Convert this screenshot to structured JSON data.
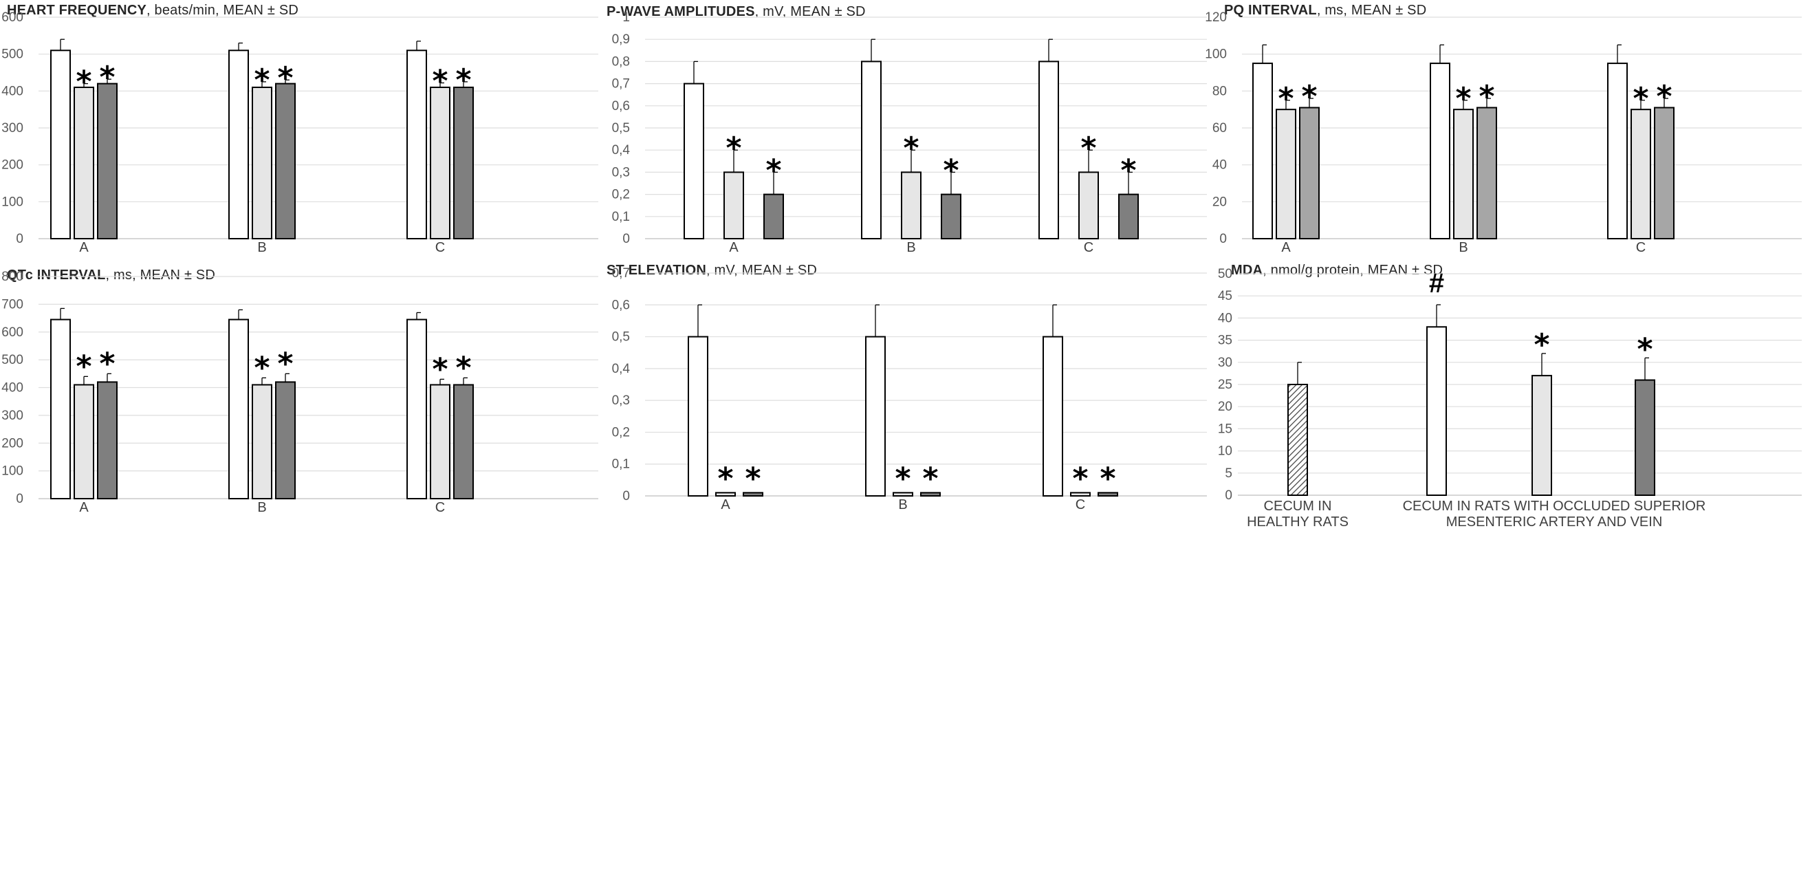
{
  "chart_data": [
    {
      "id": "hf",
      "type": "bar",
      "title_bold": "HEART FREQUENCY",
      "title_rest": ", beats/min, MEAN ± SD",
      "categories": [
        "A",
        "B",
        "C"
      ],
      "ylim": [
        0,
        600
      ],
      "yticks": [
        0,
        100,
        200,
        300,
        400,
        500,
        600
      ],
      "ytick_labels": [
        "0",
        "100",
        "200",
        "300",
        "400",
        "500",
        "600"
      ],
      "series_colors": [
        "#ffffff",
        "#e6e6e6",
        "#7f7f7f"
      ],
      "values": [
        [
          510,
          410,
          420
        ],
        [
          510,
          410,
          420
        ],
        [
          510,
          410,
          410
        ]
      ],
      "errors": [
        [
          30,
          10,
          12
        ],
        [
          20,
          15,
          10
        ],
        [
          25,
          12,
          15
        ]
      ],
      "markers": [
        [
          "",
          "*",
          "*"
        ],
        [
          "",
          "*",
          "*"
        ],
        [
          "",
          "*",
          "*"
        ]
      ],
      "grid": true
    },
    {
      "id": "pwave",
      "type": "bar",
      "title_bold": "P-WAVE AMPLITUDES",
      "title_rest": ", mV, MEAN ± SD",
      "categories": [
        "A",
        "B",
        "C"
      ],
      "ylim": [
        0,
        1
      ],
      "yticks": [
        0,
        0.1,
        0.2,
        0.3,
        0.4,
        0.5,
        0.6,
        0.7,
        0.8,
        0.9,
        1
      ],
      "ytick_labels": [
        "0",
        "0,1",
        "0,2",
        "0,3",
        "0,4",
        "0,5",
        "0,6",
        "0,7",
        "0,8",
        "0,9",
        "1"
      ],
      "series_colors": [
        "#ffffff",
        "#e6e6e6",
        "#7f7f7f"
      ],
      "values": [
        [
          0.7,
          0.3,
          0.2
        ],
        [
          0.8,
          0.3,
          0.2
        ],
        [
          0.8,
          0.3,
          0.2
        ]
      ],
      "errors": [
        [
          0.1,
          0.1,
          0.1
        ],
        [
          0.1,
          0.1,
          0.1
        ],
        [
          0.1,
          0.1,
          0.1
        ]
      ],
      "markers": [
        [
          "",
          "*",
          "*"
        ],
        [
          "",
          "*",
          "*"
        ],
        [
          "",
          "*",
          "*"
        ]
      ],
      "grid": true
    },
    {
      "id": "pq",
      "type": "bar",
      "title_bold": "PQ INTERVAL",
      "title_rest": ", ms, MEAN ± SD",
      "categories": [
        "A",
        "B",
        "C"
      ],
      "ylim": [
        0,
        120
      ],
      "yticks": [
        0,
        20,
        40,
        60,
        80,
        100,
        120
      ],
      "ytick_labels": [
        "0",
        "20",
        "40",
        "60",
        "80",
        "100",
        "120"
      ],
      "series_colors": [
        "#ffffff",
        "#e6e6e6",
        "#a6a6a6"
      ],
      "values": [
        [
          95,
          70,
          71
        ],
        [
          95,
          70,
          71
        ],
        [
          95,
          70,
          71
        ]
      ],
      "errors": [
        [
          10,
          5,
          5
        ],
        [
          10,
          5,
          5
        ],
        [
          10,
          5,
          5
        ]
      ],
      "markers": [
        [
          "",
          "*",
          "*"
        ],
        [
          "",
          "*",
          "*"
        ],
        [
          "",
          "*",
          "*"
        ]
      ],
      "grid": true
    },
    {
      "id": "qtc",
      "type": "bar",
      "title_bold": "QTc INTERVAL",
      "title_rest": ", ms, MEAN ± SD",
      "categories": [
        "A",
        "B",
        "C"
      ],
      "ylim": [
        0,
        800
      ],
      "yticks": [
        0,
        100,
        200,
        300,
        400,
        500,
        600,
        700,
        800
      ],
      "ytick_labels": [
        "0",
        "100",
        "200",
        "300",
        "400",
        "500",
        "600",
        "700",
        "800"
      ],
      "series_colors": [
        "#ffffff",
        "#e6e6e6",
        "#7f7f7f"
      ],
      "values": [
        [
          645,
          410,
          420
        ],
        [
          645,
          410,
          420
        ],
        [
          645,
          410,
          410
        ]
      ],
      "errors": [
        [
          40,
          30,
          30
        ],
        [
          35,
          25,
          30
        ],
        [
          25,
          20,
          25
        ]
      ],
      "markers": [
        [
          "",
          "*",
          "*"
        ],
        [
          "",
          "*",
          "*"
        ],
        [
          "",
          "*",
          "*"
        ]
      ],
      "grid": true
    },
    {
      "id": "st",
      "type": "bar",
      "title_bold": "ST ELEVATION",
      "title_rest": ", mV, MEAN ± SD",
      "categories": [
        "A",
        "B",
        "C"
      ],
      "ylim": [
        0,
        0.7
      ],
      "yticks": [
        0,
        0.1,
        0.2,
        0.3,
        0.4,
        0.5,
        0.6,
        0.7
      ],
      "ytick_labels": [
        "0",
        "0,1",
        "0,2",
        "0,3",
        "0,4",
        "0,5",
        "0,6",
        "0,7"
      ],
      "series_colors": [
        "#ffffff",
        "#e6e6e6",
        "#7f7f7f"
      ],
      "values": [
        [
          0.5,
          0.01,
          0.01
        ],
        [
          0.5,
          0.01,
          0.01
        ],
        [
          0.5,
          0.01,
          0.01
        ]
      ],
      "errors": [
        [
          0.1,
          0,
          0
        ],
        [
          0.1,
          0,
          0
        ],
        [
          0.1,
          0,
          0
        ]
      ],
      "markers": [
        [
          "",
          "*",
          "*"
        ],
        [
          "",
          "*",
          "*"
        ],
        [
          "",
          "*",
          "*"
        ]
      ],
      "grid": true
    },
    {
      "id": "mda",
      "type": "bar",
      "title_bold": "MDA",
      "title_rest": ", nmol/g protein, MEAN ± SD",
      "categories": [
        "CECUM IN|HEALTHY RATS",
        "CECUM IN RATS WITH OCCLUDED SUPERIOR|MESENTERIC ARTERY AND VEIN"
      ],
      "ylim": [
        0,
        50
      ],
      "yticks": [
        0,
        5,
        10,
        15,
        20,
        25,
        30,
        35,
        40,
        45,
        50
      ],
      "ytick_labels": [
        "0",
        "5",
        "10",
        "15",
        "20",
        "25",
        "30",
        "35",
        "40",
        "45",
        "50"
      ],
      "bars": [
        {
          "group": 0,
          "value": 25,
          "error": 5,
          "fill": "hatch",
          "marker": ""
        },
        {
          "group": 1,
          "value": 38,
          "error": 5,
          "fill": "#ffffff",
          "marker": "#"
        },
        {
          "group": 1,
          "value": 27,
          "error": 5,
          "fill": "#e6e6e6",
          "marker": "*"
        },
        {
          "group": 1,
          "value": 26,
          "error": 5,
          "fill": "#7f7f7f",
          "marker": "*"
        }
      ],
      "grid": true
    }
  ]
}
